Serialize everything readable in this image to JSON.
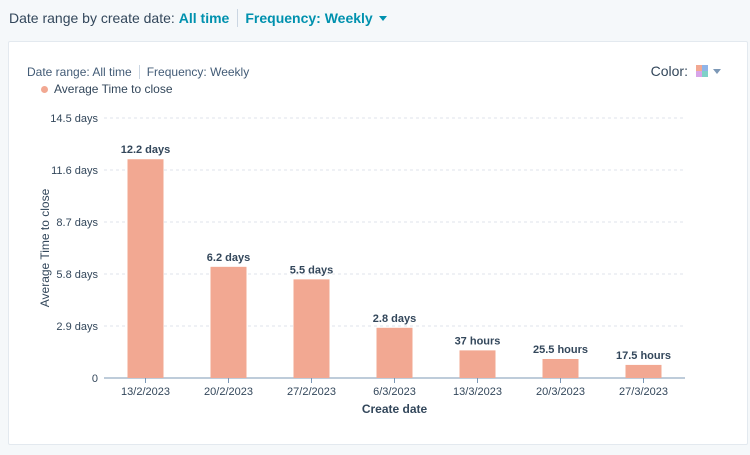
{
  "filters": {
    "date_range_prefix": "Date range by create date:",
    "date_range_value": "All time",
    "frequency_label": "Frequency: Weekly"
  },
  "card": {
    "date_range": "Date range: All time",
    "frequency": "Frequency: Weekly",
    "color_label": "Color:",
    "legend": "Average Time to close"
  },
  "colors": {
    "bar": "#f2a892",
    "accent": "#0091ae",
    "grid": "#dfe3eb",
    "axis": "#7c98b6"
  },
  "chart_data": {
    "type": "bar",
    "xlabel": "Create date",
    "ylabel": "Average Time to close",
    "ylim": [
      0,
      14.5
    ],
    "yticks": [
      0,
      2.9,
      5.8,
      8.7,
      11.6,
      14.5
    ],
    "ytick_labels": [
      "0",
      "2.9 days",
      "5.8 days",
      "8.7 days",
      "11.6 days",
      "14.5 days"
    ],
    "categories": [
      "13/2/2023",
      "20/2/2023",
      "27/2/2023",
      "6/3/2023",
      "13/3/2023",
      "20/3/2023",
      "27/3/2023"
    ],
    "values": [
      12.2,
      6.2,
      5.5,
      2.8,
      1.54,
      1.06,
      0.73
    ],
    "labels": [
      "12.2 days",
      "6.2 days",
      "5.5 days",
      "2.8 days",
      "37 hours",
      "25.5 hours",
      "17.5 hours"
    ],
    "grid": true,
    "legend_position": "top-left"
  }
}
